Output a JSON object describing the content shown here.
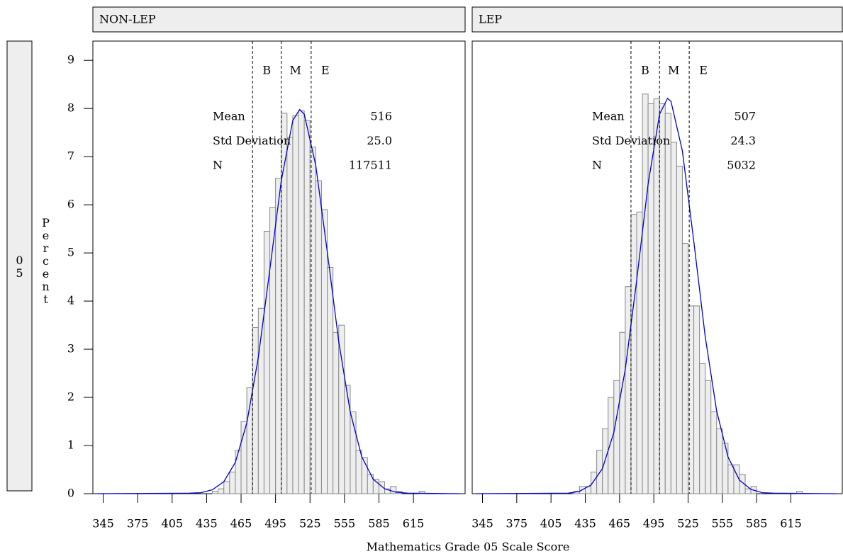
{
  "x_label": "Mathematics Grade 05 Scale Score",
  "y_label": "Percent",
  "row_label": "05",
  "chart_data": [
    {
      "type": "histogram",
      "title": "NON-LEP",
      "color": "#eeeeee",
      "bins": [
        425,
        430,
        435,
        440,
        445,
        450,
        455,
        460,
        465,
        470,
        475,
        480,
        485,
        490,
        495,
        500,
        505,
        510,
        515,
        520,
        525,
        530,
        535,
        540,
        545,
        550,
        555,
        560,
        565,
        570,
        575,
        580,
        585,
        590,
        595,
        600,
        605,
        610,
        615,
        620,
        625
      ],
      "values": [
        0,
        0,
        0,
        0.05,
        0.1,
        0.25,
        0.45,
        0.9,
        1.5,
        2.2,
        3.45,
        3.85,
        5.45,
        5.95,
        6.55,
        7.9,
        7.4,
        7.85,
        7.95,
        7.75,
        7.2,
        6.5,
        5.9,
        4.7,
        3.35,
        3.5,
        2.25,
        1.7,
        0.9,
        0.75,
        0.4,
        0.3,
        0.25,
        0.1,
        0.15,
        0.05,
        0,
        0,
        0,
        0.05
      ],
      "curve": {
        "color": "#0000cc",
        "x": [
          340,
          420,
          430,
          440,
          450,
          460,
          470,
          480,
          490,
          500,
          510,
          516,
          520,
          530,
          540,
          550,
          560,
          570,
          580,
          590,
          600,
          610,
          655
        ],
        "values": [
          0,
          0.01,
          0.02,
          0.08,
          0.25,
          0.65,
          1.47,
          2.83,
          4.65,
          6.5,
          7.75,
          7.98,
          7.88,
          6.82,
          5.03,
          3.16,
          1.7,
          0.77,
          0.3,
          0.1,
          0.03,
          0.01,
          0
        ]
      },
      "ref_lines": [
        {
          "value": 475,
          "label": "B"
        },
        {
          "value": 500,
          "label": "M"
        },
        {
          "value": 526,
          "label": "E"
        }
      ],
      "stats": [
        [
          "Mean",
          "516"
        ],
        [
          "Std Deviation",
          "25.0"
        ],
        [
          "N",
          "117511"
        ]
      ],
      "xlim": [
        336,
        660
      ],
      "xticks": [
        345,
        375,
        405,
        435,
        465,
        495,
        525,
        555,
        585,
        615
      ],
      "ylim": [
        0,
        9.4
      ],
      "yticks": [
        0,
        1,
        2,
        3,
        4,
        5,
        6,
        7,
        8,
        9
      ]
    },
    {
      "type": "histogram",
      "title": "LEP",
      "color": "#eeeeee",
      "bins": [
        425,
        430,
        435,
        440,
        445,
        450,
        455,
        460,
        465,
        470,
        475,
        480,
        485,
        490,
        495,
        500,
        505,
        510,
        515,
        520,
        525,
        530,
        535,
        540,
        545,
        550,
        555,
        560,
        565,
        570,
        575,
        580,
        585,
        590,
        595,
        600,
        605,
        610,
        615,
        620,
        625
      ],
      "values": [
        0.05,
        0.15,
        0.15,
        0.45,
        0.9,
        1.35,
        2.0,
        2.35,
        3.35,
        4.3,
        5.8,
        5.85,
        8.3,
        8.1,
        8.2,
        8.1,
        7.9,
        7.3,
        6.8,
        5.2,
        3.9,
        3.9,
        2.7,
        2.35,
        1.7,
        1.35,
        1.05,
        0.6,
        0.6,
        0.4,
        0.1,
        0.15,
        0,
        0,
        0,
        0,
        0,
        0,
        0,
        0.05
      ],
      "curve": {
        "color": "#0000cc",
        "x": [
          340,
          420,
          430,
          440,
          450,
          460,
          470,
          480,
          490,
          500,
          507,
          510,
          520,
          530,
          540,
          550,
          560,
          570,
          580,
          590,
          600,
          655
        ],
        "values": [
          0,
          0.01,
          0.05,
          0.18,
          0.52,
          1.27,
          2.58,
          4.43,
          6.43,
          7.88,
          8.21,
          8.15,
          7.12,
          5.24,
          3.26,
          1.72,
          0.76,
          0.28,
          0.09,
          0.02,
          0.01,
          0
        ]
      },
      "ref_lines": [
        {
          "value": 475,
          "label": "B"
        },
        {
          "value": 500,
          "label": "M"
        },
        {
          "value": 526,
          "label": "E"
        }
      ],
      "stats": [
        [
          "Mean",
          "507"
        ],
        [
          "Std Deviation",
          "24.3"
        ],
        [
          "N",
          "5032"
        ]
      ],
      "xlim": [
        336,
        660
      ],
      "xticks": [
        345,
        375,
        405,
        435,
        465,
        495,
        525,
        555,
        585,
        615
      ],
      "ylim": [
        0,
        9.4
      ],
      "yticks": [
        0,
        1,
        2,
        3,
        4,
        5,
        6,
        7,
        8,
        9
      ]
    }
  ]
}
